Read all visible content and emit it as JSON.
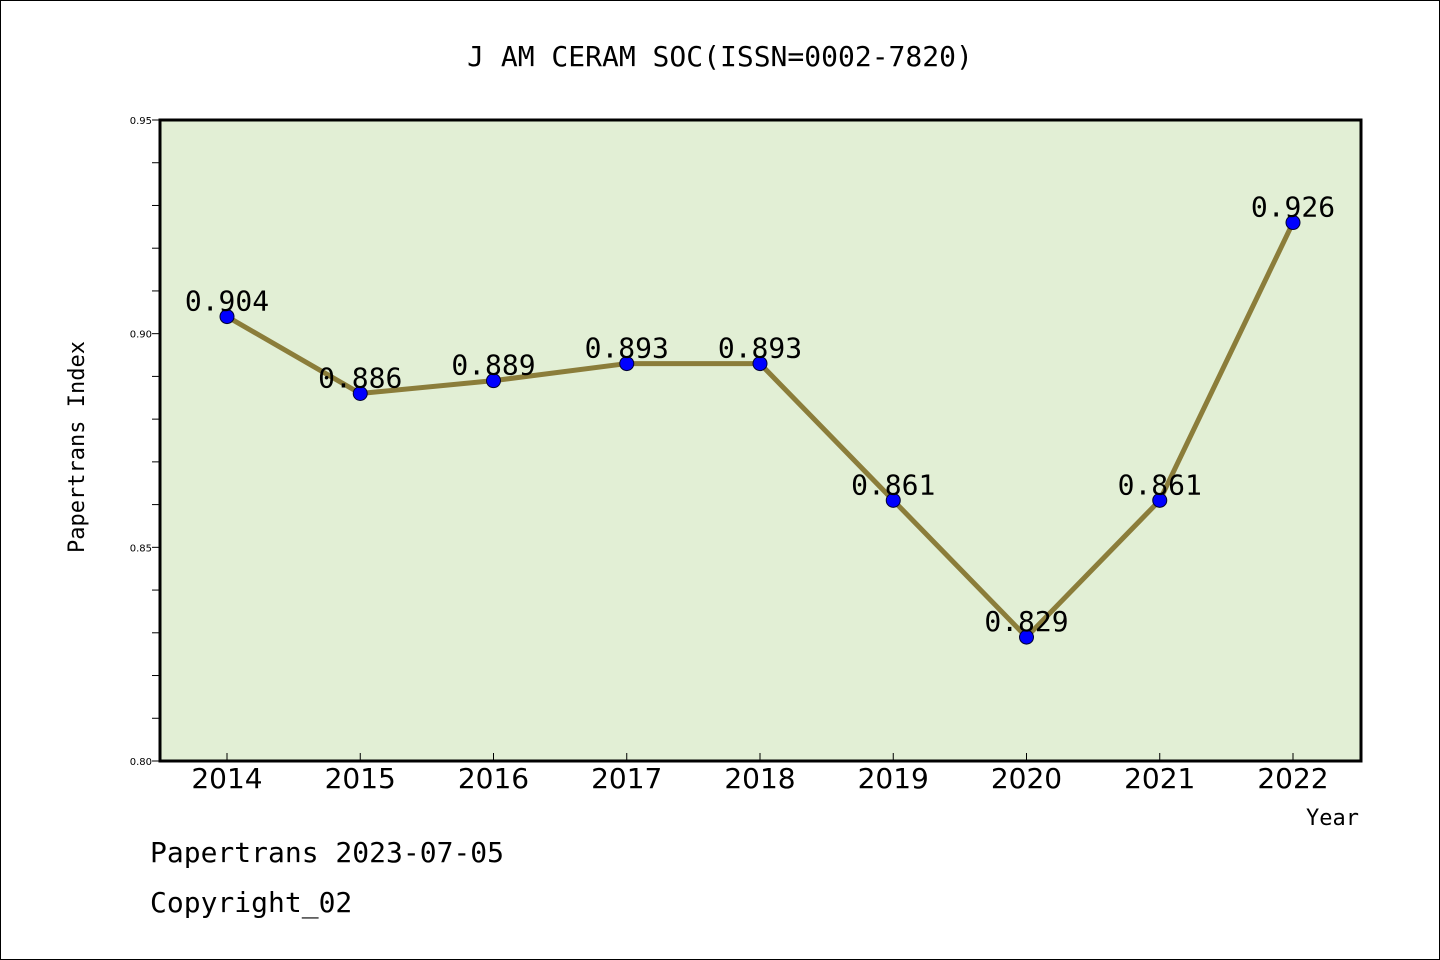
{
  "chart_data": {
    "type": "line",
    "title": "J AM CERAM SOC(ISSN=0002-7820)",
    "xlabel": "Year",
    "ylabel": "Papertrans Index",
    "categories": [
      "2014",
      "2015",
      "2016",
      "2017",
      "2018",
      "2019",
      "2020",
      "2021",
      "2022"
    ],
    "series": [
      {
        "values": [
          0.904,
          0.886,
          0.889,
          0.893,
          0.893,
          0.861,
          0.829,
          0.861,
          0.926
        ],
        "labels": [
          "0.904",
          "0.886",
          "0.889",
          "0.893",
          "0.893",
          "0.861",
          "0.829",
          "0.861",
          "0.926"
        ]
      }
    ],
    "ylim": [
      0.8,
      0.95
    ],
    "yticks": [
      "0.80",
      "0.85",
      "0.90",
      "0.95"
    ],
    "grid": false,
    "legend": "none",
    "colors": {
      "plot_background": "#e2efd5",
      "line": "#8b7d3a",
      "marker": "#0000ff"
    }
  },
  "footer": {
    "line1": "Papertrans 2023-07-05",
    "line2": "Copyright_02"
  }
}
